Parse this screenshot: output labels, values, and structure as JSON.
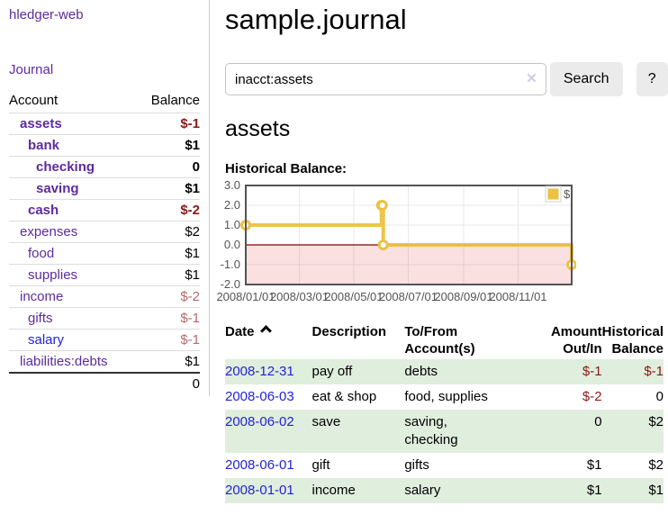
{
  "app": {
    "brand": "hledger-web"
  },
  "sidebar": {
    "journal_link": "Journal",
    "accounts_header": {
      "account": "Account",
      "balance": "Balance"
    },
    "accounts": [
      {
        "name": "assets",
        "balance": "$-1"
      },
      {
        "name": "bank",
        "balance": "$1"
      },
      {
        "name": "checking",
        "balance": "0"
      },
      {
        "name": "saving",
        "balance": "$1"
      },
      {
        "name": "cash",
        "balance": "$-2"
      },
      {
        "name": "expenses",
        "balance": "$2"
      },
      {
        "name": "food",
        "balance": "$1"
      },
      {
        "name": "supplies",
        "balance": "$1"
      },
      {
        "name": "income",
        "balance": "$-2"
      },
      {
        "name": "gifts",
        "balance": "$-1"
      },
      {
        "name": "salary",
        "balance": "$-1"
      },
      {
        "name": "liabilities:debts",
        "balance": "$1"
      }
    ],
    "total": "0"
  },
  "header": {
    "title": "sample.journal"
  },
  "search": {
    "query": "inacct:assets",
    "clear_icon": "✕",
    "button": "Search",
    "help_button": "?"
  },
  "report": {
    "title": "assets",
    "chart_label": "Historical Balance:"
  },
  "chart_data": {
    "type": "line",
    "step": true,
    "title": "Historical Balance:",
    "series": [
      {
        "name": "$",
        "color": "#edc240",
        "points": [
          [
            "2008-01-01",
            1
          ],
          [
            "2008-06-01",
            2
          ],
          [
            "2008-06-02",
            2
          ],
          [
            "2008-06-03",
            0
          ],
          [
            "2008-12-31",
            -1
          ]
        ]
      }
    ],
    "xlim": [
      "2008-01-01",
      "2008-12-31"
    ],
    "ylim": [
      -2,
      3
    ],
    "x_ticks": [
      {
        "date": "2008-01-01",
        "label": "2008/01/01"
      },
      {
        "date": "2008-03-01",
        "label": "2008/03/01"
      },
      {
        "date": "2008-05-01",
        "label": "2008/05/01"
      },
      {
        "date": "2008-07-01",
        "label": "2008/07/01"
      },
      {
        "date": "2008-09-01",
        "label": "2008/09/01"
      },
      {
        "date": "2008-11-01",
        "label": "2008/11/01"
      }
    ],
    "y_ticks": [
      3.0,
      2.0,
      1.0,
      0.0,
      -1.0,
      -2.0
    ],
    "legend": {
      "label": "$",
      "position": "top-right"
    },
    "grid": true,
    "colors": {
      "grid": "#e8e8e8",
      "border": "#545454",
      "zero_line": "#8b0000",
      "negative_region": "rgba(225,60,60,0.16)",
      "marker_fill": "#ffffff"
    }
  },
  "register": {
    "sort_icon": "chevron-up",
    "columns": {
      "date": "Date",
      "description": "Description",
      "accounts": "To/From\nAccount(s)",
      "amount": "Amount\nOut/In",
      "balance": "Historical\nBalance"
    },
    "rows": [
      {
        "date": "2008-12-31",
        "description": "pay off",
        "accounts": "debts",
        "amount": "$-1",
        "balance": "$-1"
      },
      {
        "date": "2008-06-03",
        "description": "eat & shop",
        "accounts": "food, supplies",
        "amount": "$-2",
        "balance": "0"
      },
      {
        "date": "2008-06-02",
        "description": "save",
        "accounts": "saving,\nchecking",
        "amount": "0",
        "balance": "$2"
      },
      {
        "date": "2008-06-01",
        "description": "gift",
        "accounts": "gifts",
        "amount": "$1",
        "balance": "$2"
      },
      {
        "date": "2008-01-01",
        "description": "income",
        "accounts": "salary",
        "amount": "$1",
        "balance": "$1"
      }
    ]
  }
}
